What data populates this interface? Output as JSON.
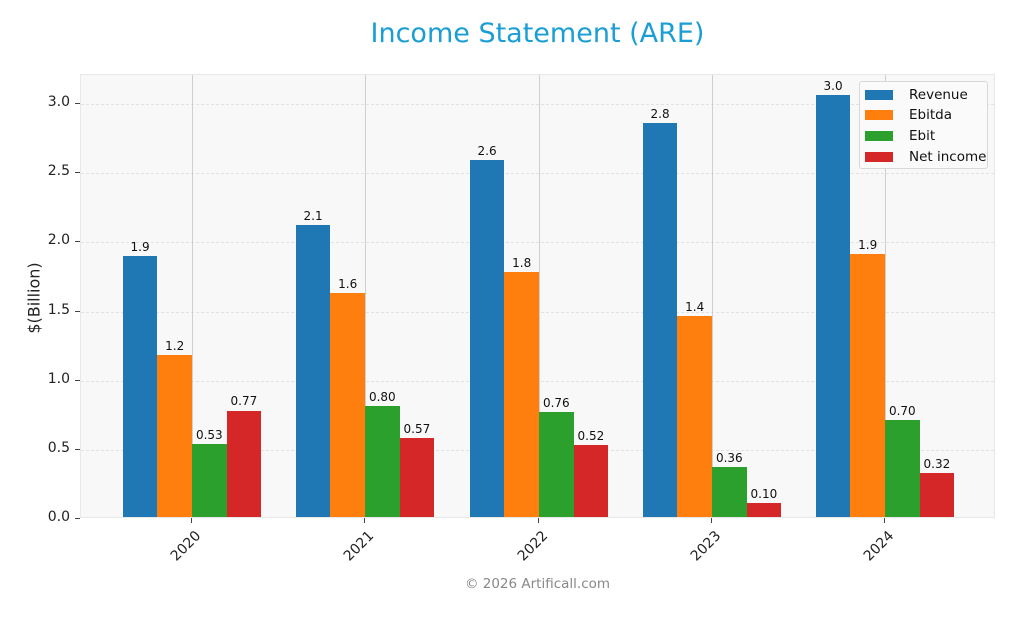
{
  "header": {
    "title": "Income Statement (ARE)"
  },
  "footer": {
    "copyright": "© 2026 Artificall.com"
  },
  "axes": {
    "ylabel": "$(Billion)",
    "yticks": [
      "0.0",
      "0.5",
      "1.0",
      "1.5",
      "2.0",
      "2.5",
      "3.0"
    ],
    "xticks": [
      "2020",
      "2021",
      "2022",
      "2023",
      "2024"
    ]
  },
  "legend": {
    "items": [
      {
        "label": "Revenue",
        "color": "#1f77b4"
      },
      {
        "label": "Ebitda",
        "color": "#ff7f0e"
      },
      {
        "label": "Ebit",
        "color": "#2ca02c"
      },
      {
        "label": "Net income",
        "color": "#d62728"
      }
    ]
  },
  "bar_labels": {
    "Revenue": [
      "1.9",
      "2.1",
      "2.6",
      "2.8",
      "3.0"
    ],
    "Ebitda": [
      "1.2",
      "1.6",
      "1.8",
      "1.4",
      "1.9"
    ],
    "Ebit": [
      "0.53",
      "0.80",
      "0.76",
      "0.36",
      "0.70"
    ],
    "Net income": [
      "0.77",
      "0.57",
      "0.52",
      "0.10",
      "0.32"
    ]
  },
  "chart_data": {
    "type": "bar",
    "title": "Income Statement (ARE)",
    "xlabel": "",
    "ylabel": "$(Billion)",
    "categories": [
      "2020",
      "2021",
      "2022",
      "2023",
      "2024"
    ],
    "series": [
      {
        "name": "Revenue",
        "color": "#1f77b4",
        "values": [
          1.89,
          2.11,
          2.58,
          2.85,
          3.05
        ]
      },
      {
        "name": "Ebitda",
        "color": "#ff7f0e",
        "values": [
          1.17,
          1.62,
          1.77,
          1.45,
          1.9
        ]
      },
      {
        "name": "Ebit",
        "color": "#2ca02c",
        "values": [
          0.53,
          0.8,
          0.76,
          0.36,
          0.7
        ]
      },
      {
        "name": "Net income",
        "color": "#d62728",
        "values": [
          0.77,
          0.57,
          0.52,
          0.1,
          0.32
        ]
      }
    ],
    "ylim": [
      0,
      3.2
    ],
    "yticks": [
      0.0,
      0.5,
      1.0,
      1.5,
      2.0,
      2.5,
      3.0
    ],
    "grid": true,
    "legend_position": "upper right",
    "annotations": "value labels above each bar",
    "footer": "© 2026 Artificall.com"
  }
}
